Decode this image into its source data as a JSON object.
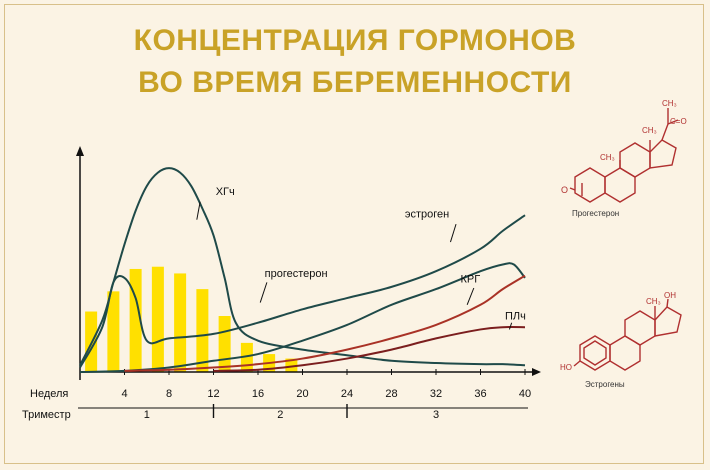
{
  "title_line1": "КОНЦЕНТРАЦИЯ ГОРМОНОВ",
  "title_line2": "ВО ВРЕМЯ БЕРЕМЕННОСТИ",
  "chart_data": {
    "type": "line",
    "title": "КОНЦЕНТРАЦИЯ ГОРМОНОВ ВО ВРЕМЯ БЕРЕМЕННОСТИ",
    "xlabel": "Неделя",
    "xlim": [
      0,
      40
    ],
    "x_ticks": [
      4,
      8,
      12,
      16,
      20,
      24,
      28,
      32,
      36,
      40
    ],
    "trimester_label": "Триместр",
    "trimesters": [
      "1",
      "2",
      "3"
    ],
    "ylim": [
      0,
      100
    ],
    "grid": false,
    "series": [
      {
        "name": "ХГч",
        "color": "#1f4a49",
        "x": [
          0,
          2,
          3,
          4,
          5,
          6,
          7,
          8,
          9,
          10,
          11,
          12,
          13,
          14,
          16,
          20,
          24,
          28,
          32,
          36,
          38,
          40
        ],
        "y": [
          3,
          23,
          40,
          57,
          72,
          83,
          89,
          91,
          89,
          83,
          73,
          61,
          42,
          22,
          14,
          10,
          7.5,
          5,
          4,
          3.5,
          3.5,
          3
        ]
      },
      {
        "name": "прогестерон",
        "color": "#1f4a49",
        "x": [
          0,
          2,
          3,
          4,
          5,
          6,
          8,
          12,
          16,
          20,
          24,
          28,
          32,
          36,
          38,
          40
        ],
        "y": [
          2,
          20,
          40,
          42,
          33,
          14,
          15,
          17,
          22,
          28,
          33,
          38,
          45,
          55,
          63,
          70
        ]
      },
      {
        "name": "эстроген",
        "color": "#1f4a49",
        "x": [
          0,
          4,
          8,
          12,
          16,
          20,
          24,
          28,
          32,
          36,
          38,
          39,
          40
        ],
        "y": [
          0,
          0.5,
          2,
          5,
          8,
          14,
          21,
          30,
          37,
          45,
          48,
          48,
          42
        ]
      },
      {
        "name": "КРГ",
        "color": "#a93226",
        "x": [
          4,
          8,
          12,
          16,
          20,
          24,
          28,
          32,
          36,
          38,
          40
        ],
        "y": [
          0.5,
          1,
          2,
          3.5,
          6,
          10,
          15,
          21,
          30,
          37,
          43
        ]
      },
      {
        "name": "ПЛч",
        "color": "#7b1e1e",
        "x": [
          12,
          16,
          20,
          24,
          28,
          32,
          36,
          38,
          40
        ],
        "y": [
          0.5,
          1,
          3,
          6,
          10,
          15,
          19,
          20,
          20
        ]
      }
    ],
    "bars": {
      "color": "#ffe000",
      "x": [
        1,
        3,
        5,
        7,
        9,
        11,
        13,
        15,
        17,
        19
      ],
      "values": [
        27,
        36,
        46,
        47,
        44,
        37,
        25,
        13,
        8,
        6
      ]
    }
  },
  "formulas": [
    {
      "caption": "Прогестерон",
      "labels": [
        "CH₃",
        "C=O",
        "CH₃",
        "CH₃",
        "O"
      ]
    },
    {
      "caption": "Эстрогены",
      "labels": [
        "OH",
        "CH₃",
        "HO"
      ]
    }
  ]
}
